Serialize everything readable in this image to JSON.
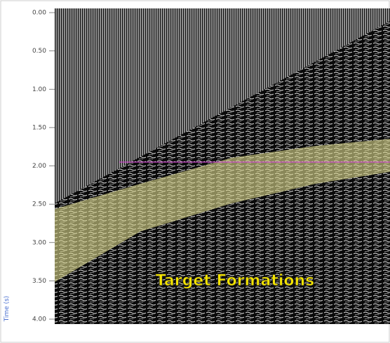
{
  "chart_data": {
    "type": "seismic",
    "axis_label": "Time (s)",
    "annotation": "Target Formations",
    "ylim": [
      0,
      4
    ],
    "yticks": [
      {
        "value": 0,
        "label": "0.00"
      },
      {
        "value": 0.5,
        "label": "0.50"
      },
      {
        "value": 1,
        "label": "1.00"
      },
      {
        "value": 1.5,
        "label": "1.50"
      },
      {
        "value": 2,
        "label": "2.00"
      },
      {
        "value": 2.5,
        "label": "2.50"
      },
      {
        "value": 3,
        "label": "3.00"
      },
      {
        "value": 3.5,
        "label": "3.50"
      },
      {
        "value": 4,
        "label": "4.00"
      }
    ],
    "reference_line": {
      "value": 1.95,
      "color": "#d040d0"
    }
  }
}
